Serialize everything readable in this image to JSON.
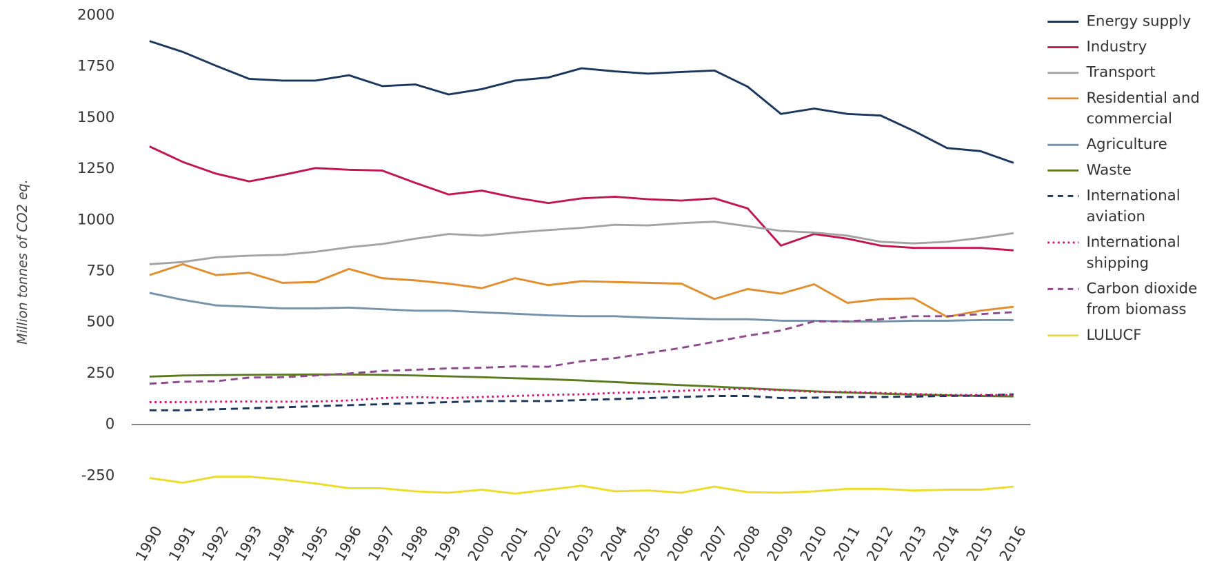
{
  "chart_data": {
    "type": "line",
    "y_label": "Million tonnes of CO2 eq.",
    "categories": [
      "1990",
      "1991",
      "1992",
      "1993",
      "1994",
      "1995",
      "1996",
      "1997",
      "1998",
      "1999",
      "2000",
      "2001",
      "2002",
      "2003",
      "2004",
      "2005",
      "2006",
      "2007",
      "2008",
      "2009",
      "2010",
      "2011",
      "2012",
      "2013",
      "2014",
      "2015",
      "2016"
    ],
    "ylim": [
      -375,
      2000
    ],
    "yticks": [
      -250,
      0,
      250,
      500,
      750,
      1000,
      1250,
      1500,
      1750,
      2000
    ],
    "grid": false,
    "legend": "right",
    "series": [
      {
        "name": "Energy supply",
        "color": "#1b365d",
        "dash": "solid",
        "values": [
          1875,
          1822,
          1754,
          1690,
          1682,
          1682,
          1708,
          1655,
          1663,
          1614,
          1640,
          1682,
          1697,
          1742,
          1727,
          1716,
          1724,
          1731,
          1652,
          1519,
          1545,
          1519,
          1511,
          1436,
          1352,
          1337,
          1280
        ]
      },
      {
        "name": "Industry",
        "color": "#c0174e",
        "dash": "solid",
        "values": [
          1360,
          1284,
          1227,
          1189,
          1220,
          1254,
          1246,
          1242,
          1182,
          1125,
          1144,
          1110,
          1083,
          1106,
          1114,
          1102,
          1095,
          1106,
          1057,
          875,
          932,
          909,
          875,
          864,
          864,
          864,
          852
        ]
      },
      {
        "name": "Transport",
        "color": "#a3a3a3",
        "dash": "solid",
        "values": [
          784,
          795,
          818,
          826,
          830,
          845,
          867,
          883,
          909,
          932,
          924,
          939,
          951,
          962,
          977,
          974,
          985,
          992,
          970,
          947,
          939,
          924,
          894,
          886,
          894,
          913,
          936
        ]
      },
      {
        "name": "Residential and commercial",
        "color": "#e08e2f",
        "dash": "solid",
        "values": [
          731,
          784,
          731,
          742,
          693,
          697,
          761,
          716,
          705,
          689,
          667,
          716,
          682,
          701,
          697,
          693,
          689,
          614,
          663,
          640,
          686,
          595,
          614,
          617,
          527,
          557,
          576
        ]
      },
      {
        "name": "Agriculture",
        "color": "#7592aa",
        "dash": "solid",
        "values": [
          644,
          610,
          583,
          576,
          568,
          568,
          572,
          564,
          557,
          557,
          549,
          542,
          534,
          530,
          530,
          523,
          519,
          515,
          515,
          508,
          508,
          504,
          504,
          508,
          508,
          511,
          511
        ]
      },
      {
        "name": "Waste",
        "color": "#5b7a20",
        "dash": "solid",
        "values": [
          235,
          240,
          242,
          243,
          244,
          245,
          245,
          243,
          240,
          236,
          232,
          227,
          222,
          216,
          208,
          200,
          193,
          186,
          178,
          170,
          163,
          157,
          152,
          147,
          143,
          140,
          138
        ]
      },
      {
        "name": "International aviation",
        "color": "#1b365d",
        "dash": "dashed",
        "values": [
          70,
          70,
          75,
          80,
          85,
          90,
          95,
          100,
          105,
          110,
          115,
          115,
          115,
          120,
          125,
          130,
          135,
          140,
          140,
          130,
          132,
          135,
          135,
          137,
          140,
          142,
          148
        ]
      },
      {
        "name": "International shipping",
        "color": "#d4147a",
        "dash": "dotted",
        "values": [
          110,
          110,
          112,
          113,
          112,
          113,
          118,
          130,
          135,
          130,
          135,
          140,
          145,
          148,
          155,
          160,
          165,
          172,
          175,
          168,
          160,
          160,
          155,
          150,
          145,
          145,
          145
        ]
      },
      {
        "name": "Carbon dioxide from biomass",
        "color": "#8e4a8e",
        "dash": "dashed",
        "values": [
          200,
          210,
          212,
          230,
          232,
          240,
          250,
          262,
          268,
          275,
          278,
          285,
          283,
          310,
          325,
          350,
          375,
          405,
          435,
          460,
          505,
          505,
          515,
          530,
          530,
          540,
          550
        ]
      },
      {
        "name": "LULUCF",
        "color": "#ecdc2a",
        "dash": "solid",
        "values": [
          -261,
          -284,
          -254,
          -254,
          -269,
          -288,
          -311,
          -311,
          -326,
          -333,
          -318,
          -337,
          -318,
          -299,
          -326,
          -322,
          -333,
          -303,
          -330,
          -333,
          -326,
          -314,
          -314,
          -322,
          -318,
          -318,
          -303
        ]
      }
    ]
  }
}
